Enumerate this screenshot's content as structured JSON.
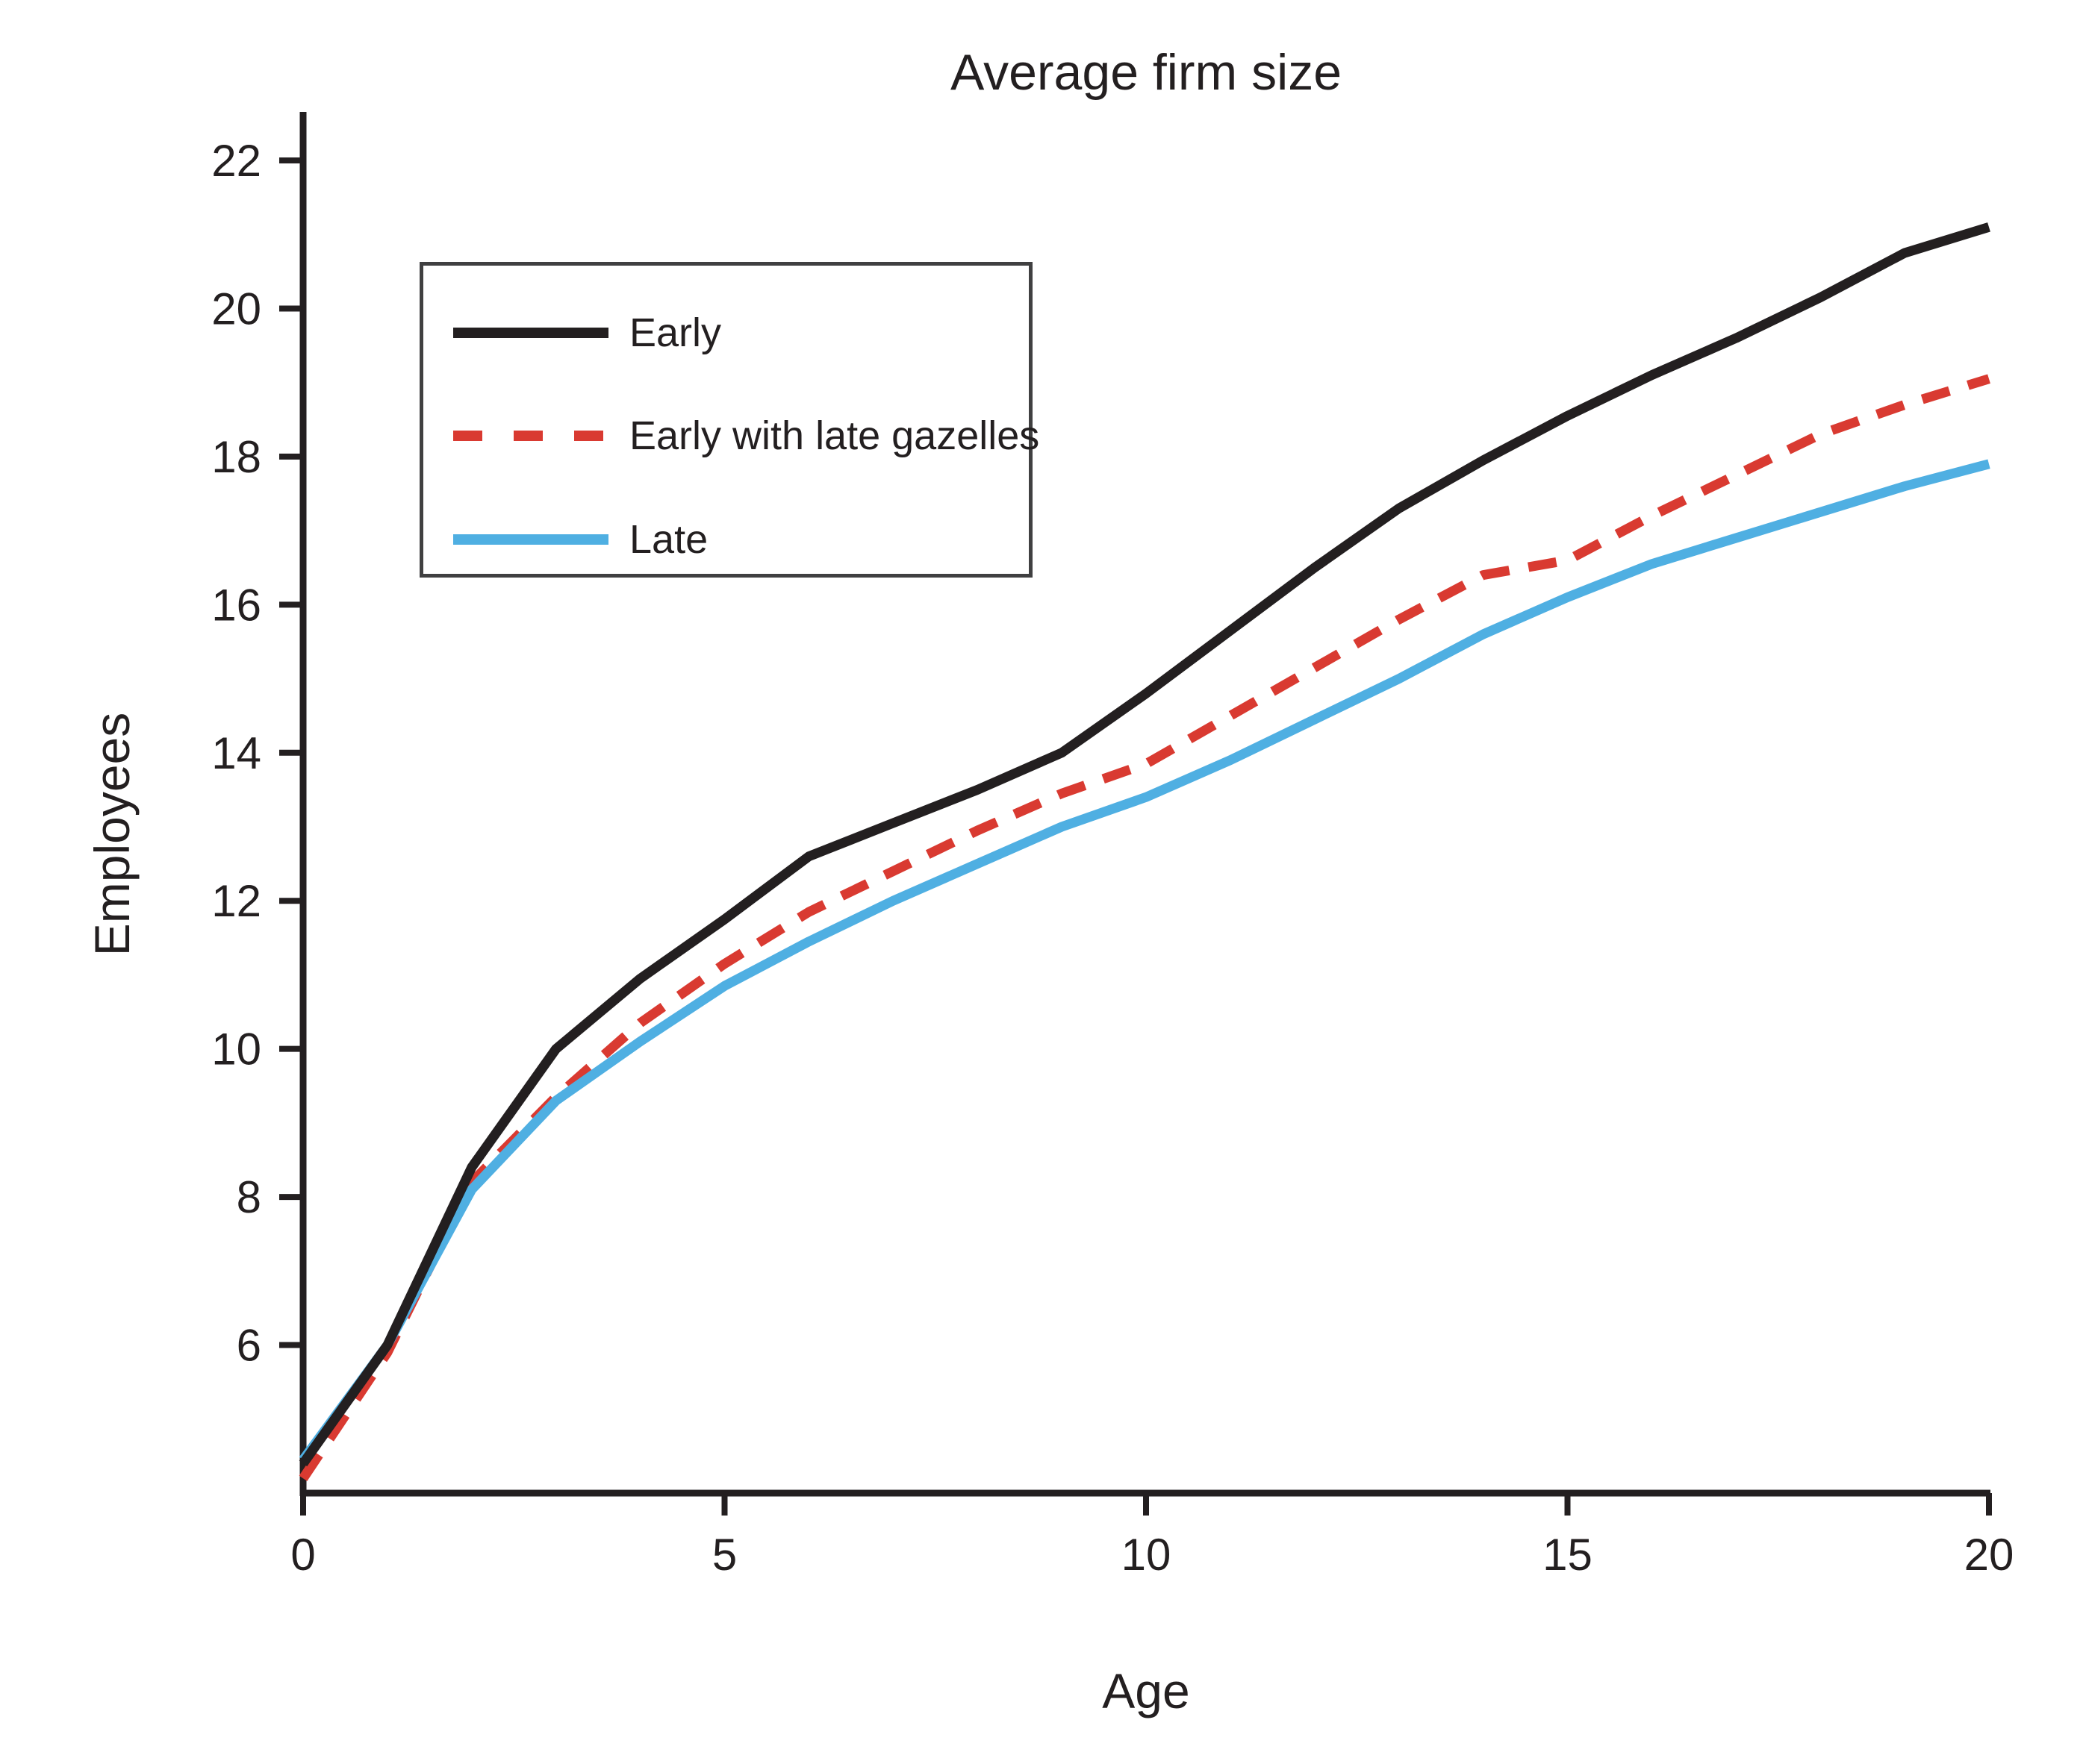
{
  "chart_data": {
    "type": "line",
    "title": "Average firm size",
    "xlabel": "Age",
    "ylabel": "Employees",
    "xlim": [
      0,
      20
    ],
    "ylim": [
      4,
      22
    ],
    "xticks": [
      0,
      5,
      10,
      15,
      20
    ],
    "yticks": [
      6,
      8,
      10,
      12,
      14,
      16,
      18,
      20,
      22
    ],
    "grid": false,
    "legend_position": "upper left",
    "x": [
      0,
      1,
      2,
      3,
      4,
      5,
      6,
      7,
      8,
      9,
      10,
      11,
      12,
      13,
      14,
      15,
      16,
      17,
      18,
      19,
      20
    ],
    "series": [
      {
        "name": "Early",
        "color": "#231f20",
        "style": "solid",
        "values": [
          4.4,
          6.0,
          8.4,
          10.0,
          10.95,
          11.75,
          12.6,
          13.05,
          13.5,
          14.0,
          14.8,
          15.65,
          16.5,
          17.3,
          17.95,
          18.55,
          19.1,
          19.6,
          20.15,
          20.75,
          21.1
        ]
      },
      {
        "name": "Early with late gazelles",
        "color": "#d93a31",
        "style": "dashed",
        "values": [
          4.2,
          5.9,
          8.2,
          9.35,
          10.35,
          11.15,
          11.85,
          12.4,
          12.95,
          13.45,
          13.85,
          14.5,
          15.15,
          15.8,
          16.4,
          16.6,
          17.2,
          17.75,
          18.3,
          18.7,
          19.05
        ]
      },
      {
        "name": "Late",
        "color": "#4fafe2",
        "style": "solid",
        "values": [
          4.45,
          6.0,
          8.1,
          9.3,
          10.1,
          10.85,
          11.45,
          12.0,
          12.5,
          13.0,
          13.4,
          13.9,
          14.45,
          15.0,
          15.6,
          16.1,
          16.55,
          16.9,
          17.25,
          17.6,
          17.9
        ]
      }
    ],
    "ink_color": "#231f20",
    "legend_border_color": "#404041"
  }
}
